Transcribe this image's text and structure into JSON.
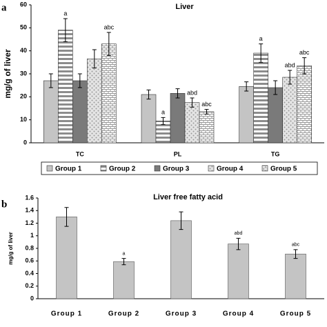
{
  "chart_data": [
    {
      "type": "bar",
      "panel": "a",
      "title": "Liver",
      "ylabel": "mg/g of liver",
      "categories": [
        "TC",
        "PL",
        "TG"
      ],
      "series": [
        {
          "name": "Group 1",
          "color": "#c4c4c4",
          "pattern": "solid",
          "values": [
            27,
            21,
            24.5
          ],
          "errors": [
            3,
            2,
            2
          ],
          "annotations": [
            null,
            null,
            null
          ]
        },
        {
          "name": "Group 2",
          "color": "#8c8c8c",
          "pattern": "hlines",
          "values": [
            49,
            9.5,
            39
          ],
          "errors": [
            5,
            1.5,
            4
          ],
          "annotations": [
            "a",
            "a",
            "a"
          ]
        },
        {
          "name": "Group 3",
          "color": "#7a7a7a",
          "pattern": "solid",
          "values": [
            27,
            21.5,
            24
          ],
          "errors": [
            3,
            2,
            3
          ],
          "annotations": [
            null,
            null,
            null
          ]
        },
        {
          "name": "Group 4",
          "color": "#9a9a9a",
          "pattern": "dots",
          "values": [
            36.5,
            17.5,
            28.5
          ],
          "errors": [
            4,
            2,
            3
          ],
          "annotations": [
            null,
            "abd",
            "abd"
          ]
        },
        {
          "name": "Group 5",
          "color": "#9a9a9a",
          "pattern": "bricks",
          "values": [
            43,
            13.5,
            33.5
          ],
          "errors": [
            5,
            1,
            3.5
          ],
          "annotations": [
            "abc",
            "abc",
            "abc"
          ]
        }
      ],
      "ylim": [
        0,
        60
      ],
      "yticks": [
        0,
        10,
        20,
        30,
        40,
        50,
        60
      ],
      "legend": "bottom"
    },
    {
      "type": "bar",
      "panel": "b",
      "title": "Liver free fatty acid",
      "ylabel": "mg/g of liver",
      "categories": [
        "Group 1",
        "Group 2",
        "Group 3",
        "Group 4",
        "Group 5"
      ],
      "color": "#c4c4c4",
      "values": [
        1.3,
        0.59,
        1.24,
        0.87,
        0.71
      ],
      "errors": [
        0.15,
        0.05,
        0.14,
        0.09,
        0.07
      ],
      "annotations": [
        null,
        "a",
        null,
        "abd",
        "abc"
      ],
      "ylim": [
        0,
        1.6
      ],
      "yticks": [
        0,
        0.2,
        0.4,
        0.6,
        0.8,
        1,
        1.2,
        1.4,
        1.6
      ]
    }
  ]
}
